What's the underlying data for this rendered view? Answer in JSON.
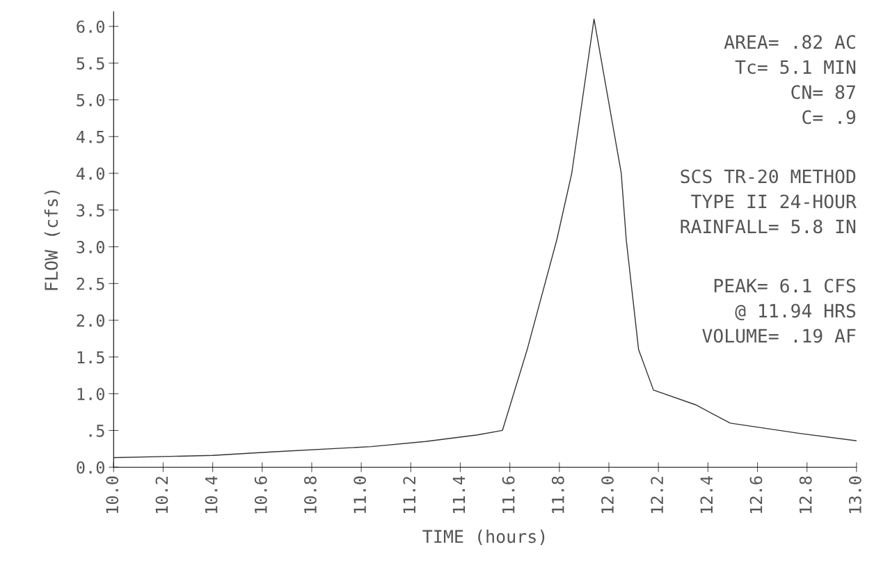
{
  "chart_data": {
    "type": "line",
    "xlabel": "TIME (hours)",
    "ylabel": "FLOW (cfs)",
    "x": [
      10.0,
      10.4,
      10.65,
      11.04,
      11.26,
      11.47,
      11.57,
      11.67,
      11.79,
      11.85,
      11.94,
      12.05,
      12.07,
      12.12,
      12.18,
      12.35,
      12.49,
      12.77,
      13.0
    ],
    "series": [
      {
        "color": "#333333",
        "values": [
          0.13,
          0.16,
          0.21,
          0.28,
          0.35,
          0.44,
          0.5,
          1.6,
          3.1,
          4.0,
          6.1,
          4.0,
          3.1,
          1.6,
          1.05,
          0.85,
          0.6,
          0.46,
          0.36
        ]
      }
    ],
    "xlim": [
      10.0,
      13.0
    ],
    "ylim": [
      0.0,
      6.2
    ],
    "xticks": [
      {
        "value": 10.0,
        "label": "10.0"
      },
      {
        "value": 10.2,
        "label": "10.2"
      },
      {
        "value": 10.4,
        "label": "10.4"
      },
      {
        "value": 10.6,
        "label": "10.6"
      },
      {
        "value": 10.8,
        "label": "10.8"
      },
      {
        "value": 11.0,
        "label": "11.0"
      },
      {
        "value": 11.2,
        "label": "11.2"
      },
      {
        "value": 11.4,
        "label": "11.4"
      },
      {
        "value": 11.6,
        "label": "11.6"
      },
      {
        "value": 11.8,
        "label": "11.8"
      },
      {
        "value": 12.0,
        "label": "12.0"
      },
      {
        "value": 12.2,
        "label": "12.2"
      },
      {
        "value": 12.4,
        "label": "12.4"
      },
      {
        "value": 12.6,
        "label": "12.6"
      },
      {
        "value": 12.8,
        "label": "12.8"
      },
      {
        "value": 13.0,
        "label": "13.0"
      }
    ],
    "yticks": [
      {
        "value": 0.0,
        "label": "0.0"
      },
      {
        "value": 0.5,
        "label": ".5"
      },
      {
        "value": 1.0,
        "label": "1.0"
      },
      {
        "value": 1.5,
        "label": "1.5"
      },
      {
        "value": 2.0,
        "label": "2.0"
      },
      {
        "value": 2.5,
        "label": "2.5"
      },
      {
        "value": 3.0,
        "label": "3.0"
      },
      {
        "value": 3.5,
        "label": "3.5"
      },
      {
        "value": 4.0,
        "label": "4.0"
      },
      {
        "value": 4.5,
        "label": "4.5"
      },
      {
        "value": 5.0,
        "label": "5.0"
      },
      {
        "value": 5.5,
        "label": "5.5"
      },
      {
        "value": 6.0,
        "label": "6.0"
      }
    ],
    "annotations": [
      "AREA= .82 AC",
      "Tc= 5.1 MIN",
      "CN= 87",
      "C= .9",
      "SCS TR-20 METHOD",
      "TYPE II 24-HOUR",
      "RAINFALL= 5.8 IN",
      "PEAK= 6.1 CFS",
      "@ 11.94 HRS",
      "VOLUME= .19 AF"
    ],
    "grid": false,
    "legend": false,
    "marker": "none",
    "line_style": "solid"
  }
}
